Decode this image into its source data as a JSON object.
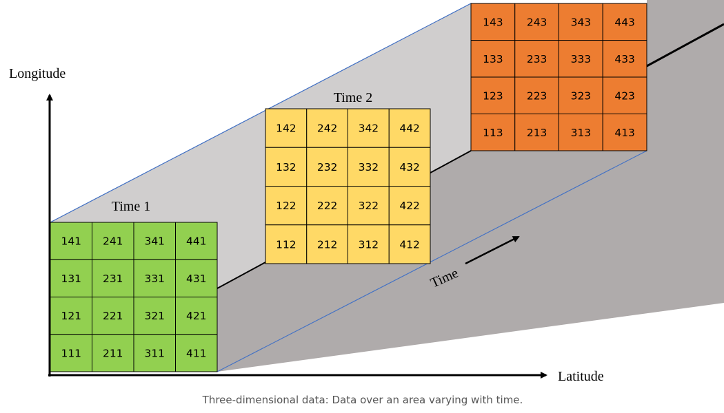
{
  "axes": {
    "y_label": "Longitude",
    "x_label": "Latitude",
    "z_label": "Time"
  },
  "colors": {
    "slice_1": "#92D050",
    "slice_2": "#FFD966",
    "slice_3": "#ED7D31",
    "box_top": "#D0CECE",
    "box_side": "#AFABAB",
    "box_edge": "#4472C4"
  },
  "slices": [
    {
      "title": "Time 1",
      "color_key": "slice_1",
      "rows": [
        [
          "141",
          "241",
          "341",
          "441"
        ],
        [
          "131",
          "231",
          "331",
          "431"
        ],
        [
          "121",
          "221",
          "321",
          "421"
        ],
        [
          "111",
          "211",
          "311",
          "411"
        ]
      ]
    },
    {
      "title": "Time 2",
      "color_key": "slice_2",
      "rows": [
        [
          "142",
          "242",
          "342",
          "442"
        ],
        [
          "132",
          "232",
          "332",
          "432"
        ],
        [
          "122",
          "222",
          "322",
          "422"
        ],
        [
          "112",
          "212",
          "312",
          "412"
        ]
      ]
    },
    {
      "title": "",
      "color_key": "slice_3",
      "rows": [
        [
          "143",
          "243",
          "343",
          "443"
        ],
        [
          "133",
          "233",
          "333",
          "433"
        ],
        [
          "123",
          "223",
          "323",
          "423"
        ],
        [
          "113",
          "213",
          "313",
          "413"
        ]
      ]
    }
  ],
  "caption": "Three-dimensional data: Data over an area varying with time."
}
